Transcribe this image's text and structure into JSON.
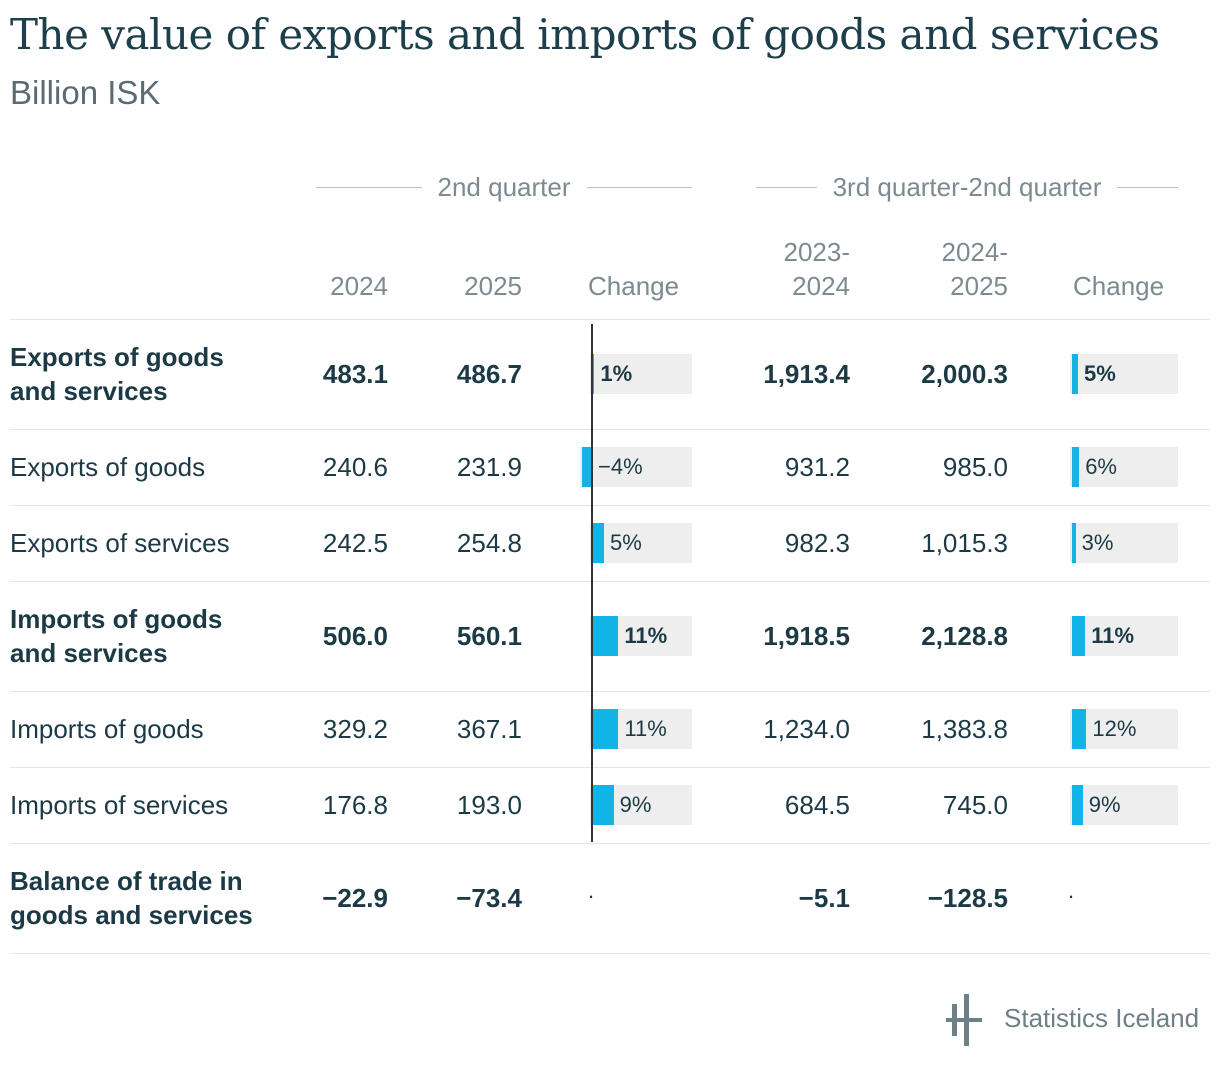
{
  "chart_data": {
    "type": "table",
    "title": "The value of exports and imports of goods and services",
    "subtitle": "Billion ISK",
    "column_groups": [
      "2nd quarter",
      "3rd quarter-2nd quarter"
    ],
    "columns": [
      "2024",
      "2025",
      "Change",
      "2023-\n2024",
      "2024-\n2025",
      "Change"
    ],
    "rows": [
      {
        "label": "Exports of goods and services",
        "bold": true,
        "v2024": "483.1",
        "v2025": "486.7",
        "change_q": 1,
        "change_q_label": "1%",
        "v2324": "1,913.4",
        "v2425": "2,000.3",
        "change_y": 5,
        "change_y_label": "5%"
      },
      {
        "label": "Exports of goods",
        "bold": false,
        "v2024": "240.6",
        "v2025": "231.9",
        "change_q": -4,
        "change_q_label": "−4%",
        "v2324": "931.2",
        "v2425": "985.0",
        "change_y": 6,
        "change_y_label": "6%"
      },
      {
        "label": "Exports of services",
        "bold": false,
        "v2024": "242.5",
        "v2025": "254.8",
        "change_q": 5,
        "change_q_label": "5%",
        "v2324": "982.3",
        "v2425": "1,015.3",
        "change_y": 3,
        "change_y_label": "3%"
      },
      {
        "label": "Imports of goods and services",
        "bold": true,
        "v2024": "506.0",
        "v2025": "560.1",
        "change_q": 11,
        "change_q_label": "11%",
        "v2324": "1,918.5",
        "v2425": "2,128.8",
        "change_y": 11,
        "change_y_label": "11%"
      },
      {
        "label": "Imports of goods",
        "bold": false,
        "v2024": "329.2",
        "v2025": "367.1",
        "change_q": 11,
        "change_q_label": "11%",
        "v2324": "1,234.0",
        "v2425": "1,383.8",
        "change_y": 12,
        "change_y_label": "12%"
      },
      {
        "label": "Imports of services",
        "bold": false,
        "v2024": "176.8",
        "v2025": "193.0",
        "change_q": 9,
        "change_q_label": "9%",
        "v2324": "684.5",
        "v2425": "745.0",
        "change_y": 9,
        "change_y_label": "9%"
      },
      {
        "label": "Balance of trade in goods and services",
        "bold": true,
        "v2024": "−22.9",
        "v2025": "−73.4",
        "change_q": null,
        "change_q_label": ".",
        "v2324": "−5.1",
        "v2425": "−128.5",
        "change_y": null,
        "change_y_label": "."
      }
    ],
    "bar_color": "#12b4e8"
  },
  "source": "Statistics Iceland"
}
